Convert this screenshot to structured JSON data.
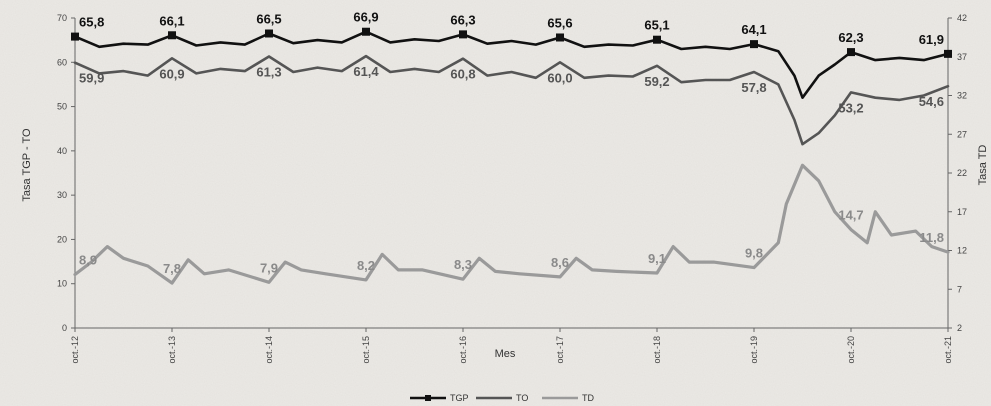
{
  "chart_data": {
    "type": "line",
    "title": "",
    "xlabel": "Mes",
    "ylabel_left": "Tasa TGP - TO",
    "ylabel_right": "Tasa TD",
    "ylim_left": [
      0,
      70
    ],
    "ylim_right": [
      2,
      42
    ],
    "yticks_left": [
      0,
      10,
      20,
      30,
      40,
      50,
      60,
      70
    ],
    "yticks_right": [
      2,
      7,
      12,
      17,
      22,
      27,
      32,
      37,
      42
    ],
    "x_ticks": [
      "oct.-12",
      "oct.-13",
      "oct.-14",
      "oct.-15",
      "oct.-16",
      "oct.-17",
      "oct.-18",
      "oct.-19",
      "oct.-20",
      "oct.-21"
    ],
    "legend": [
      "TGP",
      "TO",
      "TD"
    ],
    "legend_position": "bottom",
    "series": [
      {
        "name": "TGP",
        "axis": "left",
        "color": "#111111",
        "points": [
          [
            0,
            65.8
          ],
          [
            3,
            63.5
          ],
          [
            6,
            64.2
          ],
          [
            9,
            64.0
          ],
          [
            12,
            66.1
          ],
          [
            15,
            63.8
          ],
          [
            18,
            64.5
          ],
          [
            21,
            64.0
          ],
          [
            24,
            66.5
          ],
          [
            27,
            64.3
          ],
          [
            30,
            65.0
          ],
          [
            33,
            64.5
          ],
          [
            36,
            66.9
          ],
          [
            39,
            64.5
          ],
          [
            42,
            65.2
          ],
          [
            45,
            64.8
          ],
          [
            48,
            66.3
          ],
          [
            51,
            64.2
          ],
          [
            54,
            64.8
          ],
          [
            57,
            64.0
          ],
          [
            60,
            65.6
          ],
          [
            63,
            63.5
          ],
          [
            66,
            64.0
          ],
          [
            69,
            63.8
          ],
          [
            72,
            65.1
          ],
          [
            75,
            63.0
          ],
          [
            78,
            63.5
          ],
          [
            81,
            63.0
          ],
          [
            84,
            64.1
          ],
          [
            87,
            62.5
          ],
          [
            89,
            57.0
          ],
          [
            90,
            52.0
          ],
          [
            92,
            57.0
          ],
          [
            94,
            59.5
          ],
          [
            96,
            62.3
          ],
          [
            99,
            60.5
          ],
          [
            102,
            61.0
          ],
          [
            105,
            60.5
          ],
          [
            108,
            61.9
          ]
        ],
        "labels": [
          [
            0,
            "65,8"
          ],
          [
            12,
            "66,1"
          ],
          [
            24,
            "66,5"
          ],
          [
            36,
            "66,9"
          ],
          [
            48,
            "66,3"
          ],
          [
            60,
            "65,6"
          ],
          [
            72,
            "65,1"
          ],
          [
            84,
            "64,1"
          ],
          [
            96,
            "62,3"
          ],
          [
            108,
            "61,9"
          ]
        ]
      },
      {
        "name": "TO",
        "axis": "left",
        "color": "#555555",
        "points": [
          [
            0,
            59.9
          ],
          [
            3,
            57.5
          ],
          [
            6,
            58.0
          ],
          [
            9,
            57.0
          ],
          [
            12,
            60.9
          ],
          [
            15,
            57.5
          ],
          [
            18,
            58.5
          ],
          [
            21,
            58.0
          ],
          [
            24,
            61.3
          ],
          [
            27,
            57.8
          ],
          [
            30,
            58.8
          ],
          [
            33,
            58.0
          ],
          [
            36,
            61.4
          ],
          [
            39,
            57.8
          ],
          [
            42,
            58.5
          ],
          [
            45,
            57.8
          ],
          [
            48,
            60.8
          ],
          [
            51,
            57.0
          ],
          [
            54,
            57.8
          ],
          [
            57,
            56.5
          ],
          [
            60,
            60.0
          ],
          [
            63,
            56.5
          ],
          [
            66,
            57.0
          ],
          [
            69,
            56.8
          ],
          [
            72,
            59.2
          ],
          [
            75,
            55.5
          ],
          [
            78,
            56.0
          ],
          [
            81,
            56.0
          ],
          [
            84,
            57.8
          ],
          [
            87,
            55.0
          ],
          [
            89,
            47.0
          ],
          [
            90,
            41.5
          ],
          [
            92,
            44.0
          ],
          [
            94,
            48.0
          ],
          [
            96,
            53.2
          ],
          [
            99,
            52.0
          ],
          [
            102,
            51.5
          ],
          [
            105,
            52.5
          ],
          [
            108,
            54.6
          ]
        ],
        "labels": [
          [
            0,
            "59,9"
          ],
          [
            12,
            "60,9"
          ],
          [
            24,
            "61,3"
          ],
          [
            36,
            "61,4"
          ],
          [
            48,
            "60,8"
          ],
          [
            60,
            "60,0"
          ],
          [
            72,
            "59,2"
          ],
          [
            84,
            "57,8"
          ],
          [
            96,
            "53,2"
          ],
          [
            108,
            "54,6"
          ]
        ]
      },
      {
        "name": "TD",
        "axis": "right",
        "color": "#9a9a9a",
        "points": [
          [
            0,
            8.9
          ],
          [
            2,
            10.5
          ],
          [
            4,
            12.5
          ],
          [
            6,
            11.0
          ],
          [
            9,
            10.0
          ],
          [
            12,
            7.8
          ],
          [
            14,
            10.8
          ],
          [
            16,
            9.0
          ],
          [
            19,
            9.5
          ],
          [
            24,
            7.9
          ],
          [
            26,
            10.5
          ],
          [
            28,
            9.5
          ],
          [
            31,
            9.0
          ],
          [
            36,
            8.2
          ],
          [
            38,
            11.5
          ],
          [
            40,
            9.5
          ],
          [
            43,
            9.5
          ],
          [
            48,
            8.3
          ],
          [
            50,
            11.0
          ],
          [
            52,
            9.3
          ],
          [
            55,
            9.0
          ],
          [
            60,
            8.6
          ],
          [
            62,
            11.0
          ],
          [
            64,
            9.5
          ],
          [
            67,
            9.3
          ],
          [
            72,
            9.1
          ],
          [
            74,
            12.5
          ],
          [
            76,
            10.5
          ],
          [
            79,
            10.5
          ],
          [
            84,
            9.8
          ],
          [
            87,
            13.0
          ],
          [
            88,
            18.0
          ],
          [
            90,
            23.0
          ],
          [
            92,
            21.0
          ],
          [
            94,
            17.0
          ],
          [
            96,
            14.7
          ],
          [
            98,
            13.0
          ],
          [
            99,
            17.0
          ],
          [
            101,
            14.0
          ],
          [
            104,
            14.5
          ],
          [
            106,
            12.5
          ],
          [
            108,
            11.8
          ]
        ],
        "labels": [
          [
            0,
            "8,9"
          ],
          [
            12,
            "7,8"
          ],
          [
            24,
            "7,9"
          ],
          [
            36,
            "8,2"
          ],
          [
            48,
            "8,3"
          ],
          [
            60,
            "8,6"
          ],
          [
            72,
            "9,1"
          ],
          [
            84,
            "9,8"
          ],
          [
            96,
            "14,7"
          ],
          [
            108,
            "11,8"
          ]
        ]
      }
    ]
  }
}
